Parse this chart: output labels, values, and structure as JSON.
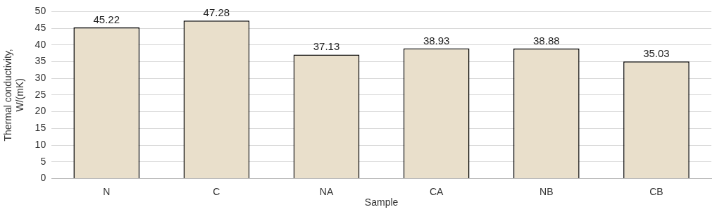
{
  "chart_data": {
    "type": "bar",
    "xlabel": "Sample",
    "ylabel": "Thermal conductivity, W/(mK)",
    "categories": [
      "N",
      "C",
      "NA",
      "CA",
      "NB",
      "CB"
    ],
    "values": [
      45.22,
      47.28,
      37.13,
      38.93,
      38.88,
      35.03
    ],
    "color": "#e9dfcb",
    "ylim": [
      0,
      50
    ],
    "yticks": [
      0,
      5,
      10,
      15,
      20,
      25,
      30,
      35,
      40,
      45,
      50
    ],
    "grid": "y",
    "legend": false,
    "data_labels": true
  }
}
